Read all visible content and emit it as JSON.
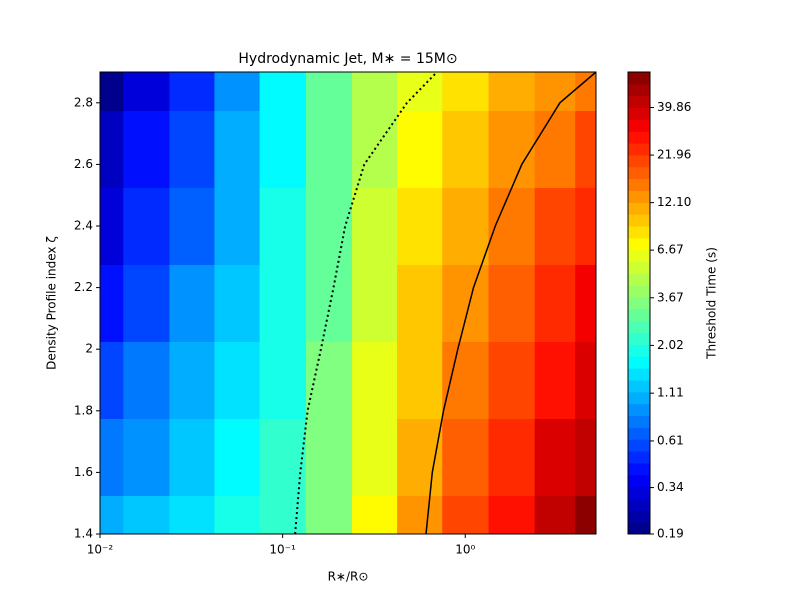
{
  "chart_data": {
    "type": "contourf",
    "title": "Hydrodynamic Jet, M∗ = 15M⊙",
    "x_label": "R∗/R⊙",
    "y_label": "Density Profile index ζ",
    "colorbar_label": "Threshold Time (s)",
    "x_scale": "log",
    "xlim": [
      0.01,
      5.2
    ],
    "ylim": [
      1.4,
      2.9
    ],
    "xticks": [
      {
        "value": 0.01,
        "label": "10⁻²"
      },
      {
        "value": 0.1,
        "label": "10⁻¹"
      },
      {
        "value": 1,
        "label": "10⁰"
      }
    ],
    "yticks": [
      1.4,
      1.6,
      1.8,
      2.0,
      2.2,
      2.4,
      2.6,
      2.8
    ],
    "colormap": "jet",
    "color_scale": "log",
    "clim": [
      0.19,
      62.2
    ],
    "levels": 39,
    "colorbar_ticks": [
      0.19,
      0.34,
      0.61,
      1.11,
      2.02,
      3.67,
      6.67,
      {
        "value": 12.1,
        "label": "12.10"
      },
      21.96,
      39.86
    ],
    "x": [
      0.01,
      0.018,
      0.032,
      0.056,
      0.1,
      0.18,
      0.32,
      0.56,
      1,
      1.8,
      3.2,
      5
    ],
    "y": [
      1.4,
      1.65,
      1.9,
      2.15,
      2.4,
      2.65,
      2.9
    ],
    "z": [
      [
        1.0,
        1.2,
        1.45,
        1.78,
        2.24,
        3.55,
        7.08,
        13.2,
        20.0,
        28.2,
        41.7,
        56.2
      ],
      [
        0.76,
        0.96,
        1.21,
        1.58,
        2.11,
        3.41,
        6.56,
        11.7,
        17.3,
        23.9,
        34.4,
        45.5
      ],
      [
        0.58,
        0.77,
        1.02,
        1.41,
        2.0,
        3.29,
        6.07,
        10.3,
        14.9,
        20.3,
        28.4,
        36.9
      ],
      [
        0.45,
        0.62,
        0.85,
        1.26,
        1.88,
        3.16,
        5.62,
        9.12,
        12.9,
        17.2,
        23.4,
        29.9
      ],
      [
        0.34,
        0.49,
        0.71,
        1.12,
        1.78,
        3.04,
        5.21,
        8.07,
        11.1,
        14.6,
        19.4,
        24.2
      ],
      [
        0.26,
        0.4,
        0.6,
        1.0,
        1.68,
        2.93,
        4.82,
        7.13,
        9.62,
        12.4,
        16.0,
        19.6
      ],
      [
        0.2,
        0.32,
        0.5,
        0.89,
        1.58,
        2.82,
        4.47,
        6.31,
        8.32,
        10.5,
        13.2,
        15.8
      ]
    ],
    "lines": [
      {
        "style": "dotted",
        "color": "#000000",
        "x": [
          0.117,
          0.125,
          0.137,
          0.162,
          0.19,
          0.22,
          0.28,
          0.48,
          0.7
        ],
        "y": [
          1.4,
          1.6,
          1.8,
          2.0,
          2.2,
          2.4,
          2.6,
          2.8,
          2.9
        ]
      },
      {
        "style": "solid",
        "color": "#000000",
        "x": [
          0.61,
          0.66,
          0.76,
          0.91,
          1.11,
          1.46,
          2.04,
          3.3,
          5.2
        ],
        "y": [
          1.4,
          1.6,
          1.8,
          2.0,
          2.2,
          2.4,
          2.6,
          2.8,
          2.9
        ]
      }
    ]
  }
}
